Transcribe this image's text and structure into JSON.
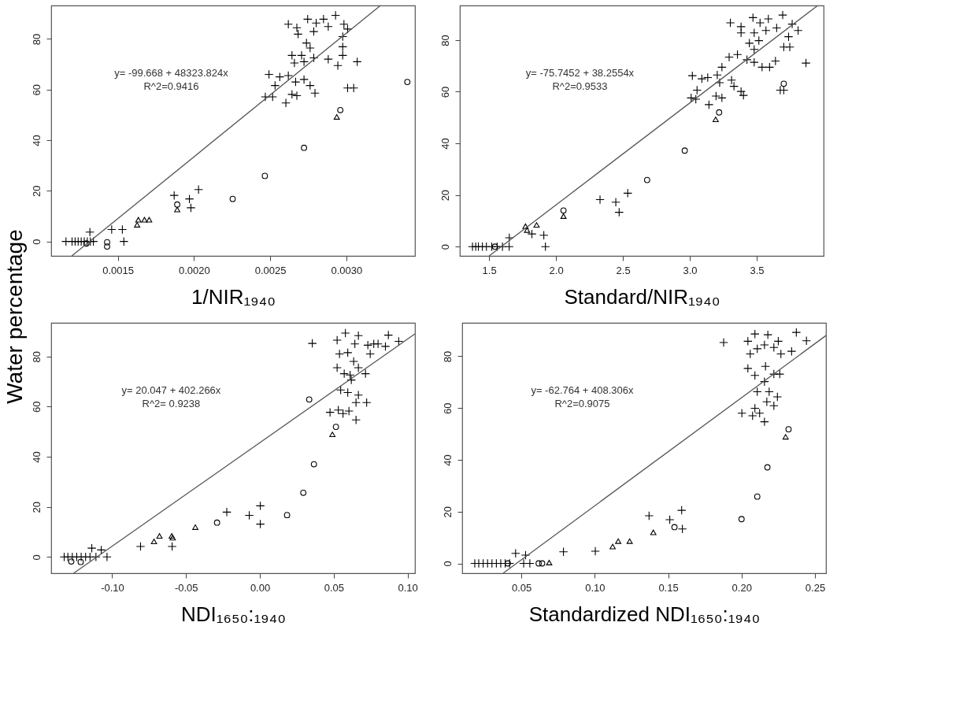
{
  "chart_data": [
    {
      "type": "scatter",
      "xlabel": "1/NIR₁₉₄₀",
      "ylabel": "Water percentage",
      "xlim": [
        0.001063,
        0.00345
      ],
      "ylim": [
        -5.7,
        93.2
      ],
      "xticks": [
        0.0015,
        {
          "value": 0.002,
          "label": "0.0020"
        },
        0.0025,
        {
          "value": 0.003,
          "label": "0.0030"
        }
      ],
      "yticks": [
        0,
        20,
        40,
        60,
        80
      ],
      "grid": false,
      "annotations": [
        "y= -99.668 + 48323.824x",
        "R^2=0.9416"
      ],
      "series": [
        {
          "marker": "cross",
          "color": "#000000",
          "x": [
            0.00116,
            0.0012,
            0.00122,
            0.00124,
            0.00126,
            0.00128,
            0.0013,
            0.00132,
            0.00134,
            0.001317,
            0.00146,
            0.00153,
            0.00154,
            0.00187,
            0.00197,
            0.00198,
            0.00203,
            0.002619,
            0.002675,
            0.002683,
            0.002746,
            0.002802,
            0.00285,
            0.002929,
            0.002881,
            0.002984,
            0.003008,
            0.002786,
            0.002976,
            0.002738,
            0.002762,
            0.002976,
            0.002976,
            0.002643,
            0.002706,
            0.002786,
            0.002881,
            0.002944,
            0.003071,
            0.002659,
            0.002722,
            0.002492,
            0.002563,
            0.002619,
            0.002667,
            0.002532,
            0.002722,
            0.002762,
            0.002794,
            0.002468,
            0.002516,
            0.002643,
            0.002675,
            0.002603,
            0.003008,
            0.003048
          ],
          "values": [
            0,
            0,
            0,
            0,
            0,
            0,
            0,
            0,
            0,
            3.7,
            4.7,
            4.7,
            0,
            18.2,
            16.8,
            13.3,
            20.5,
            85.8,
            84.4,
            81.9,
            87.8,
            86.3,
            87.8,
            89.3,
            84.9,
            85.8,
            83.9,
            82.9,
            80.9,
            78.4,
            76.4,
            76.9,
            73.5,
            73.5,
            73.5,
            72.5,
            72,
            69.5,
            71,
            70.5,
            71,
            66,
            65,
            65.5,
            63,
            61.6,
            64,
            61.6,
            58.6,
            57.1,
            57.1,
            58.1,
            57.6,
            54.7,
            60.6,
            60.6
          ]
        },
        {
          "marker": "circle",
          "color": "#000000",
          "x": [
            0.001294,
            0.00143,
            0.00143,
            0.00189,
            0.002254,
            0.002465,
            0.002722,
            0.00296,
            0.0034
          ],
          "values": [
            -0.8,
            -0.3,
            -2,
            14.6,
            16.8,
            25.9,
            37,
            51.9,
            63
          ]
        },
        {
          "marker": "triangle",
          "color": "#000000",
          "x": [
            0.001627,
            0.001635,
            0.001675,
            0.001706,
            0.00189,
            0.002937
          ],
          "values": [
            6.6,
            8.6,
            8.6,
            8.6,
            12.6,
            49.2
          ]
        },
        {
          "type": "line",
          "marker": "none",
          "line_style": "solid",
          "color": "#555555",
          "x": [
            0.0011984,
            0.003222
          ],
          "values": [
            -5.7,
            93.1
          ]
        }
      ]
    },
    {
      "type": "scatter",
      "xlabel": "Standard/NIR₁₉₄₀",
      "xlim": [
        1.2815,
        4.0
      ],
      "ylim": [
        -3.6,
        93.4
      ],
      "xticks": [
        1.5,
        {
          "value": 2,
          "label": "2.0"
        },
        2.5,
        {
          "value": 3,
          "label": "3.0"
        },
        3.5
      ],
      "yticks": [
        0,
        20,
        40,
        60,
        80
      ],
      "grid": false,
      "annotations": [
        "y= -75.7452 + 38.2554x",
        "R^2=0.9533"
      ],
      "series": [
        {
          "marker": "cross",
          "color": "#000000",
          "x": [
            1.376,
            1.4,
            1.42,
            1.45,
            1.48,
            1.52,
            1.56,
            1.6,
            1.65,
            1.651,
            1.82,
            1.909,
            1.921,
            2.329,
            2.447,
            2.472,
            2.536,
            3.019,
            3.01,
            3.045,
            3.09,
            3.134,
            3.054,
            3.205,
            3.223,
            3.24,
            3.143,
            3.196,
            3.24,
            3.312,
            3.33,
            3.383,
            3.401,
            3.294,
            3.356,
            3.427,
            3.481,
            3.54,
            3.596,
            3.64,
            3.676,
            3.702,
            3.303,
            3.383,
            3.383,
            3.472,
            3.525,
            3.587,
            3.694,
            3.481,
            3.516,
            3.445,
            3.481,
            3.569,
            3.649,
            3.738,
            3.765,
            3.809,
            3.702,
            3.747,
            3.868
          ],
          "values": [
            0,
            0,
            0,
            0,
            0,
            0,
            0,
            0,
            0,
            3.4,
            4.9,
            4.4,
            0,
            18.2,
            17.2,
            13.3,
            20.7,
            66.2,
            57.6,
            57.1,
            65,
            65.5,
            60.6,
            66.5,
            63.5,
            69.5,
            55,
            58.3,
            57.6,
            64.5,
            62.1,
            60.1,
            58.6,
            73.4,
            74.4,
            72.4,
            71.4,
            69.5,
            69.5,
            71.9,
            60.6,
            60.6,
            86.7,
            85.2,
            82.8,
            88.7,
            86.7,
            88.2,
            89.7,
            82.8,
            79.8,
            78.8,
            76.4,
            83.7,
            84.7,
            81.3,
            86.2,
            83.7,
            77.3,
            77.3,
            71.1
          ]
        },
        {
          "marker": "circle",
          "color": "#000000",
          "x": [
            1.544,
            2.056,
            2.681,
            2.962,
            3.219,
            3.702
          ],
          "values": [
            0,
            14,
            25.8,
            37.2,
            52,
            63.1
          ]
        },
        {
          "marker": "triangle",
          "color": "#000000",
          "x": [
            1.772,
            1.784,
            1.855,
            2.056,
            3.193
          ],
          "values": [
            7.9,
            6.4,
            8.4,
            11.8,
            49.3
          ]
        },
        {
          "type": "line",
          "marker": "none",
          "line_style": "solid",
          "color": "#555555",
          "x": [
            1.5,
            3.956
          ],
          "values": [
            -3.6,
            93.4
          ]
        }
      ]
    },
    {
      "type": "scatter",
      "xlabel": "NDI₁₆₅₀:₁₉₄₀",
      "xlim": [
        -0.1413,
        0.105
      ],
      "ylim": [
        -6.5,
        93.4
      ],
      "xticks": [
        {
          "value": -0.1,
          "label": "-0.10"
        },
        -0.05,
        {
          "value": 0,
          "label": "0.00"
        },
        0.05,
        {
          "value": 0.1,
          "label": "0.10"
        }
      ],
      "yticks": [
        0,
        20,
        40,
        60,
        80
      ],
      "grid": false,
      "annotations": [
        "y= 20.047 + 402.266x",
        "R^2= 0.9238"
      ],
      "series": [
        {
          "marker": "cross",
          "color": "#000000",
          "x": [
            -0.1325,
            -0.13,
            -0.127,
            -0.124,
            -0.121,
            -0.118,
            -0.115,
            -0.111,
            -0.1035,
            -0.1138,
            -0.1074,
            -0.0808,
            -0.0594,
            -0.0224,
            -0.0072,
            0.0003,
            0.0003,
            0.0355,
            0.0523,
            0.0579,
            0.0667,
            0.0643,
            0.0731,
            0.0771,
            0.0539,
            0.0595,
            0.0747,
            0.0523,
            0.0571,
            0.0619,
            0.0611,
            0.0667,
            0.0715,
            0.0635,
            0.0547,
            0.0595,
            0.0667,
            0.0651,
            0.0723,
            0.0475,
            0.0531,
            0.0563,
            0.0603,
            0.0651,
            0.087,
            0.094,
            0.08,
            0.085
          ],
          "values": [
            0,
            0,
            0,
            0,
            0,
            0,
            0,
            0,
            0,
            3.5,
            2.8,
            4.2,
            4.2,
            17.9,
            16.6,
            20.4,
            13.1,
            85.2,
            86.5,
            89.3,
            88.3,
            85,
            84.5,
            85,
            81,
            81.5,
            81,
            75.5,
            73.1,
            70.6,
            72.6,
            75.5,
            73.1,
            78,
            66.6,
            65.6,
            64.6,
            61.6,
            61.6,
            57.7,
            58.6,
            57.2,
            58.2,
            54.7,
            88.5,
            86,
            85,
            84
          ]
        },
        {
          "marker": "circle",
          "color": "#000000",
          "x": [
            -0.1277,
            -0.1213,
            -0.029,
            0.0184,
            0.0294,
            0.0366,
            0.0334,
            0.0515
          ],
          "values": [
            -1.8,
            -2,
            13.7,
            16.7,
            25.6,
            37,
            62.8,
            51.9
          ]
        },
        {
          "marker": "triangle",
          "color": "#000000",
          "x": [
            -0.0717,
            -0.068,
            -0.0597,
            -0.059,
            -0.0437,
            0.0491
          ],
          "values": [
            6.2,
            8.4,
            8.4,
            7.7,
            11.9,
            48.9
          ]
        },
        {
          "type": "line",
          "marker": "none",
          "line_style": "solid",
          "color": "#555555",
          "x": [
            -0.1261,
            0.105
          ],
          "values": [
            -6.5,
            89
          ]
        }
      ]
    },
    {
      "type": "scatter",
      "xlabel": "Standardized NDI₁₆₅₀:₁₉₄₀",
      "xlim": [
        0.00974,
        0.2575
      ],
      "ylim": [
        -3.8,
        92.9
      ],
      "xticks": [
        0.05,
        {
          "value": 0.1,
          "label": "0.10"
        },
        0.15,
        {
          "value": 0.2,
          "label": "0.20"
        },
        0.25
      ],
      "yticks": [
        0,
        20,
        40,
        60,
        80
      ],
      "grid": false,
      "annotations": [
        "y= -62.764 + 408.306x",
        "R^2=0.9075"
      ],
      "series": [
        {
          "marker": "cross",
          "color": "#000000",
          "x": [
            0.0183,
            0.021,
            0.024,
            0.027,
            0.03,
            0.033,
            0.036,
            0.039,
            0.042,
            0.0461,
            0.0516,
            0.0558,
            0.0529,
            0.0787,
            0.1004,
            0.137,
            0.1511,
            0.1592,
            0.1597,
            0.1878,
            0.2091,
            0.2043,
            0.2179,
            0.225,
            0.2373,
            0.2442,
            0.2341,
            0.2059,
            0.2107,
            0.2156,
            0.222,
            0.2268,
            0.2043,
            0.2091,
            0.2156,
            0.2163,
            0.222,
            0.226,
            0.2107,
            0.2188,
            0.2244,
            0.2091,
            0.2172,
            0.222,
            0.2002,
            0.2075,
            0.2123,
            0.2156
          ],
          "values": [
            0,
            0,
            0,
            0,
            0,
            0,
            0,
            0,
            0,
            3.9,
            0,
            0,
            3.2,
            4.5,
            4.7,
            18.4,
            16.9,
            20.5,
            13.3,
            85.3,
            88.6,
            85.8,
            88.3,
            85.8,
            89.2,
            86,
            81.9,
            80.9,
            82.9,
            84.4,
            83.4,
            80.9,
            75.3,
            72.6,
            70.2,
            76.1,
            73.1,
            73.1,
            66.3,
            66.3,
            64.3,
            59.9,
            62.4,
            60.9,
            58,
            57,
            58,
            54.7
          ]
        },
        {
          "marker": "circle",
          "color": "#000000",
          "x": [
            0.0408,
            0.0618,
            0.0642,
            0.1543,
            0.2,
            0.2107,
            0.2176,
            0.232
          ],
          "values": [
            0,
            0,
            0,
            14,
            17.1,
            25.8,
            37.1,
            51.8
          ]
        },
        {
          "marker": "triangle",
          "color": "#000000",
          "x": [
            0.069,
            0.1122,
            0.116,
            0.1238,
            0.1399,
            0.23
          ],
          "values": [
            0.3,
            6.5,
            8.6,
            8.6,
            12,
            48.9
          ]
        },
        {
          "type": "line",
          "marker": "none",
          "line_style": "solid",
          "color": "#555555",
          "x": [
            0.0376,
            0.2575
          ],
          "values": [
            -3.8,
            88
          ]
        }
      ]
    }
  ]
}
